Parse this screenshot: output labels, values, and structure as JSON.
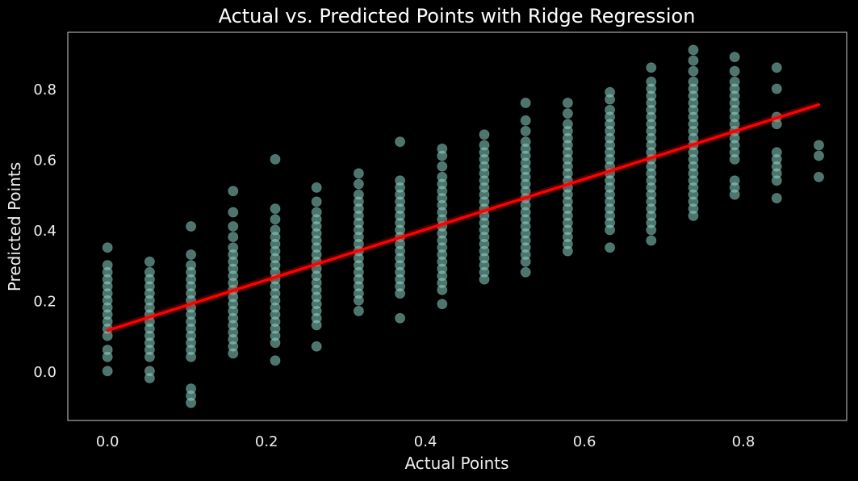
{
  "chart_data": {
    "type": "scatter",
    "title": "Actual vs. Predicted Points with Ridge Regression",
    "xlabel": "Actual Points",
    "ylabel": "Predicted Points",
    "xlim": [
      -0.05,
      0.93
    ],
    "ylim": [
      -0.14,
      0.96
    ],
    "xticks": [
      0.0,
      0.2,
      0.4,
      0.6,
      0.8
    ],
    "xtick_labels": [
      "0.0",
      "0.2",
      "0.4",
      "0.6",
      "0.8"
    ],
    "yticks": [
      0.0,
      0.2,
      0.4,
      0.6,
      0.8
    ],
    "ytick_labels": [
      "0.0",
      "0.2",
      "0.4",
      "0.6",
      "0.8"
    ],
    "grid": false,
    "background": "#000000",
    "point_color": "#8dd3c7",
    "line_color": "#ff0000",
    "scatter_columns": [
      {
        "x": 0.0,
        "y": [
          0.0,
          0.04,
          0.06,
          0.1,
          0.12,
          0.14,
          0.16,
          0.18,
          0.2,
          0.22,
          0.24,
          0.26,
          0.28,
          0.3,
          0.35
        ]
      },
      {
        "x": 0.053,
        "y": [
          -0.02,
          0.0,
          0.04,
          0.06,
          0.08,
          0.1,
          0.12,
          0.14,
          0.16,
          0.18,
          0.2,
          0.22,
          0.24,
          0.26,
          0.28,
          0.31
        ]
      },
      {
        "x": 0.105,
        "y": [
          -0.09,
          -0.07,
          -0.05,
          0.04,
          0.06,
          0.08,
          0.1,
          0.12,
          0.14,
          0.16,
          0.18,
          0.2,
          0.22,
          0.24,
          0.26,
          0.28,
          0.3,
          0.33,
          0.41
        ]
      },
      {
        "x": 0.158,
        "y": [
          0.05,
          0.07,
          0.09,
          0.11,
          0.13,
          0.15,
          0.17,
          0.19,
          0.21,
          0.23,
          0.25,
          0.27,
          0.29,
          0.31,
          0.33,
          0.35,
          0.38,
          0.41,
          0.45,
          0.51
        ]
      },
      {
        "x": 0.211,
        "y": [
          0.03,
          0.08,
          0.1,
          0.12,
          0.14,
          0.16,
          0.18,
          0.2,
          0.22,
          0.24,
          0.26,
          0.28,
          0.3,
          0.32,
          0.34,
          0.36,
          0.38,
          0.4,
          0.43,
          0.46,
          0.6
        ]
      },
      {
        "x": 0.263,
        "y": [
          0.07,
          0.13,
          0.15,
          0.17,
          0.19,
          0.21,
          0.23,
          0.25,
          0.27,
          0.29,
          0.31,
          0.33,
          0.35,
          0.37,
          0.39,
          0.41,
          0.43,
          0.45,
          0.48,
          0.52
        ]
      },
      {
        "x": 0.316,
        "y": [
          0.17,
          0.2,
          0.22,
          0.24,
          0.26,
          0.28,
          0.3,
          0.32,
          0.34,
          0.36,
          0.38,
          0.4,
          0.42,
          0.44,
          0.46,
          0.48,
          0.5,
          0.53,
          0.56
        ]
      },
      {
        "x": 0.368,
        "y": [
          0.15,
          0.22,
          0.24,
          0.26,
          0.28,
          0.3,
          0.32,
          0.34,
          0.36,
          0.38,
          0.4,
          0.42,
          0.44,
          0.46,
          0.48,
          0.5,
          0.52,
          0.54,
          0.65
        ]
      },
      {
        "x": 0.421,
        "y": [
          0.19,
          0.23,
          0.25,
          0.27,
          0.29,
          0.31,
          0.33,
          0.35,
          0.37,
          0.39,
          0.41,
          0.43,
          0.45,
          0.47,
          0.49,
          0.51,
          0.53,
          0.55,
          0.58,
          0.61,
          0.63
        ]
      },
      {
        "x": 0.474,
        "y": [
          0.26,
          0.28,
          0.3,
          0.32,
          0.34,
          0.36,
          0.38,
          0.4,
          0.42,
          0.44,
          0.46,
          0.48,
          0.5,
          0.52,
          0.54,
          0.56,
          0.58,
          0.6,
          0.62,
          0.64,
          0.67
        ]
      },
      {
        "x": 0.526,
        "y": [
          0.28,
          0.31,
          0.33,
          0.35,
          0.37,
          0.39,
          0.41,
          0.43,
          0.45,
          0.47,
          0.49,
          0.51,
          0.53,
          0.55,
          0.57,
          0.59,
          0.61,
          0.63,
          0.65,
          0.68,
          0.71,
          0.76
        ]
      },
      {
        "x": 0.579,
        "y": [
          0.34,
          0.36,
          0.38,
          0.4,
          0.42,
          0.44,
          0.46,
          0.48,
          0.5,
          0.52,
          0.54,
          0.56,
          0.58,
          0.6,
          0.62,
          0.64,
          0.66,
          0.68,
          0.7,
          0.73,
          0.76
        ]
      },
      {
        "x": 0.632,
        "y": [
          0.35,
          0.4,
          0.42,
          0.44,
          0.46,
          0.48,
          0.5,
          0.52,
          0.54,
          0.56,
          0.58,
          0.6,
          0.62,
          0.64,
          0.66,
          0.68,
          0.7,
          0.72,
          0.74,
          0.77,
          0.79
        ]
      },
      {
        "x": 0.684,
        "y": [
          0.37,
          0.4,
          0.42,
          0.44,
          0.46,
          0.48,
          0.5,
          0.52,
          0.54,
          0.56,
          0.58,
          0.6,
          0.62,
          0.64,
          0.66,
          0.68,
          0.7,
          0.72,
          0.74,
          0.76,
          0.78,
          0.8,
          0.82,
          0.86
        ]
      },
      {
        "x": 0.737,
        "y": [
          0.44,
          0.46,
          0.48,
          0.5,
          0.52,
          0.54,
          0.56,
          0.58,
          0.6,
          0.62,
          0.64,
          0.66,
          0.68,
          0.7,
          0.72,
          0.74,
          0.76,
          0.78,
          0.8,
          0.82,
          0.85,
          0.88,
          0.91
        ]
      },
      {
        "x": 0.789,
        "y": [
          0.5,
          0.52,
          0.54,
          0.6,
          0.62,
          0.64,
          0.66,
          0.68,
          0.7,
          0.72,
          0.74,
          0.76,
          0.78,
          0.8,
          0.82,
          0.85,
          0.89
        ]
      },
      {
        "x": 0.842,
        "y": [
          0.49,
          0.54,
          0.56,
          0.58,
          0.6,
          0.62,
          0.7,
          0.72,
          0.8,
          0.86
        ]
      },
      {
        "x": 0.895,
        "y": [
          0.55,
          0.61,
          0.64
        ]
      }
    ],
    "regression_line": {
      "x": [
        0.0,
        0.895
      ],
      "y": [
        0.115,
        0.755
      ]
    }
  }
}
